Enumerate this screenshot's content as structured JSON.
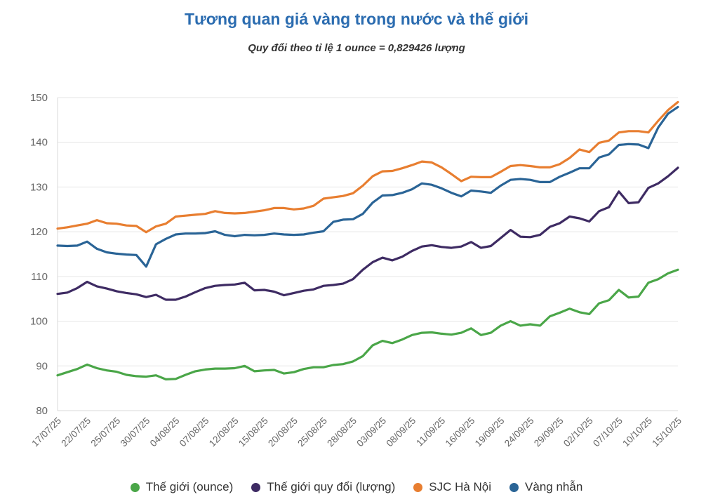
{
  "title": "Tương quan giá vàng trong nước và thế giới",
  "subtitle": "Quy đổi theo tỉ lệ 1 ounce = 0,829426 lượng",
  "colors": {
    "title": "#2b6cb0",
    "axis_text": "#666666",
    "gridline": "#e6e6e6",
    "axis_line": "#d8d8d8",
    "legend_text": "#333333"
  },
  "chart_data": {
    "type": "line",
    "title": "Tương quan giá vàng trong nước và thế giới",
    "subtitle": "Quy đổi theo tỉ lệ 1 ounce = 0,829426 lượng",
    "xlabel": "",
    "ylabel": "",
    "ylim": [
      80,
      150
    ],
    "ytick_step": 10,
    "grid": true,
    "legend_position": "bottom",
    "tick_every": 3,
    "x_tick_labels": [
      "17/07/25",
      "22/07/25",
      "25/07/25",
      "30/07/25",
      "04/08/25",
      "07/08/25",
      "12/08/25",
      "15/08/25",
      "20/08/25",
      "25/08/25",
      "28/08/25",
      "03/09/25",
      "08/09/25",
      "11/09/25",
      "16/09/25",
      "19/09/25",
      "24/09/25",
      "29/09/25",
      "02/10/25",
      "07/10/25",
      "10/10/25",
      "15/10/25"
    ],
    "series": [
      {
        "name": "Thế giới (ounce)",
        "color": "#4aa648",
        "values": [
          87.9,
          88.6,
          89.3,
          90.3,
          89.5,
          89.0,
          88.7,
          88.0,
          87.7,
          87.6,
          87.9,
          87.0,
          87.1,
          88.0,
          88.8,
          89.2,
          89.4,
          89.4,
          89.5,
          90.0,
          88.8,
          89.0,
          89.1,
          88.3,
          88.6,
          89.3,
          89.7,
          89.7,
          90.2,
          90.4,
          91.0,
          92.2,
          94.6,
          95.6,
          95.1,
          95.9,
          96.9,
          97.4,
          97.5,
          97.2,
          97.0,
          97.4,
          98.4,
          96.9,
          97.4,
          99.0,
          100.0,
          99.0,
          99.3,
          99.0,
          101.1,
          101.9,
          102.8,
          102.0,
          101.6,
          104.0,
          104.7,
          107.0,
          105.3,
          105.5,
          108.6,
          109.4,
          110.7,
          111.5
        ]
      },
      {
        "name": "Thế giới quy đổi (lượng)",
        "color": "#3e2b63",
        "values": [
          106.1,
          106.4,
          107.4,
          108.8,
          107.8,
          107.3,
          106.7,
          106.3,
          106.0,
          105.4,
          105.9,
          104.8,
          104.8,
          105.5,
          106.5,
          107.4,
          107.9,
          108.1,
          108.2,
          108.6,
          106.9,
          107.0,
          106.6,
          105.8,
          106.3,
          106.8,
          107.1,
          107.9,
          108.1,
          108.4,
          109.4,
          111.5,
          113.2,
          114.2,
          113.6,
          114.4,
          115.7,
          116.7,
          117.0,
          116.6,
          116.4,
          116.7,
          117.7,
          116.4,
          116.8,
          118.6,
          120.4,
          118.9,
          118.8,
          119.3,
          121.1,
          121.9,
          123.4,
          123.0,
          122.3,
          124.6,
          125.5,
          129.0,
          126.4,
          126.6,
          129.8,
          130.8,
          132.4,
          134.3
        ]
      },
      {
        "name": "SJC Hà Nội",
        "color": "#e87e30",
        "values": [
          120.7,
          121.0,
          121.4,
          121.8,
          122.6,
          121.9,
          121.8,
          121.4,
          121.3,
          119.9,
          121.2,
          121.8,
          123.4,
          123.6,
          123.8,
          124.0,
          124.6,
          124.2,
          124.1,
          124.2,
          124.5,
          124.8,
          125.3,
          125.3,
          125.0,
          125.2,
          125.8,
          127.4,
          127.7,
          128.0,
          128.6,
          130.3,
          132.4,
          133.5,
          133.6,
          134.2,
          134.9,
          135.7,
          135.5,
          134.4,
          132.9,
          131.3,
          132.3,
          132.2,
          132.2,
          133.4,
          134.7,
          134.9,
          134.7,
          134.4,
          134.4,
          135.1,
          136.5,
          138.4,
          137.8,
          139.9,
          140.4,
          142.2,
          142.5,
          142.5,
          142.2,
          144.8,
          147.2,
          149.0
        ]
      },
      {
        "name": "Vàng nhẫn",
        "color": "#2a6496",
        "values": [
          116.9,
          116.8,
          116.9,
          117.8,
          116.2,
          115.4,
          115.1,
          114.9,
          114.8,
          112.2,
          117.2,
          118.4,
          119.4,
          119.6,
          119.6,
          119.7,
          120.1,
          119.3,
          119.0,
          119.3,
          119.2,
          119.3,
          119.6,
          119.4,
          119.3,
          119.4,
          119.8,
          120.1,
          122.2,
          122.7,
          122.8,
          124.0,
          126.5,
          128.1,
          128.2,
          128.7,
          129.5,
          130.8,
          130.5,
          129.7,
          128.7,
          127.9,
          129.2,
          129.0,
          128.7,
          130.3,
          131.6,
          131.8,
          131.6,
          131.1,
          131.1,
          132.3,
          133.2,
          134.2,
          134.2,
          136.6,
          137.3,
          139.4,
          139.6,
          139.5,
          138.7,
          143.3,
          146.4,
          147.9
        ]
      }
    ]
  }
}
